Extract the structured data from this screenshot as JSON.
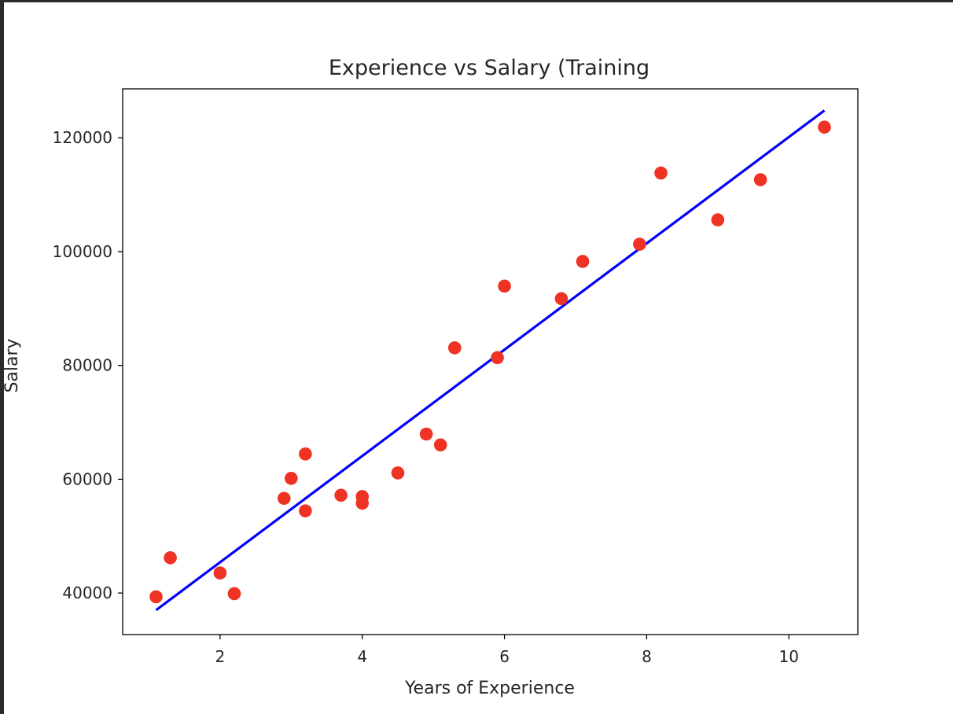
{
  "chart_data": {
    "type": "scatter",
    "title": "Experience vs Salary (Training",
    "xlabel": "Years of Experience",
    "ylabel": "Salary",
    "xlim": [
      0.63,
      10.97
    ],
    "ylim": [
      32700,
      128600
    ],
    "xticks": [
      2,
      4,
      6,
      8,
      10
    ],
    "yticks": [
      40000,
      60000,
      80000,
      100000,
      120000
    ],
    "grid": false,
    "series": [
      {
        "type": "scatter",
        "color": "#ee3224",
        "points": [
          {
            "x": 1.1,
            "y": 39343
          },
          {
            "x": 1.3,
            "y": 46205
          },
          {
            "x": 2.0,
            "y": 43525
          },
          {
            "x": 2.2,
            "y": 39891
          },
          {
            "x": 2.9,
            "y": 56642
          },
          {
            "x": 3.0,
            "y": 60150
          },
          {
            "x": 3.2,
            "y": 54445
          },
          {
            "x": 3.2,
            "y": 64445
          },
          {
            "x": 3.7,
            "y": 57189
          },
          {
            "x": 4.0,
            "y": 56957
          },
          {
            "x": 4.0,
            "y": 55794
          },
          {
            "x": 4.5,
            "y": 61111
          },
          {
            "x": 4.9,
            "y": 67938
          },
          {
            "x": 5.1,
            "y": 66029
          },
          {
            "x": 5.3,
            "y": 83088
          },
          {
            "x": 5.9,
            "y": 81363
          },
          {
            "x": 6.0,
            "y": 93940
          },
          {
            "x": 6.8,
            "y": 91738
          },
          {
            "x": 7.1,
            "y": 98273
          },
          {
            "x": 7.9,
            "y": 101302
          },
          {
            "x": 8.2,
            "y": 113812
          },
          {
            "x": 9.0,
            "y": 105582
          },
          {
            "x": 9.6,
            "y": 112635
          },
          {
            "x": 10.5,
            "y": 121872
          }
        ]
      },
      {
        "type": "line",
        "color": "#0000ff",
        "points": [
          {
            "x": 1.1,
            "y": 37000
          },
          {
            "x": 10.5,
            "y": 124800
          }
        ]
      }
    ]
  }
}
